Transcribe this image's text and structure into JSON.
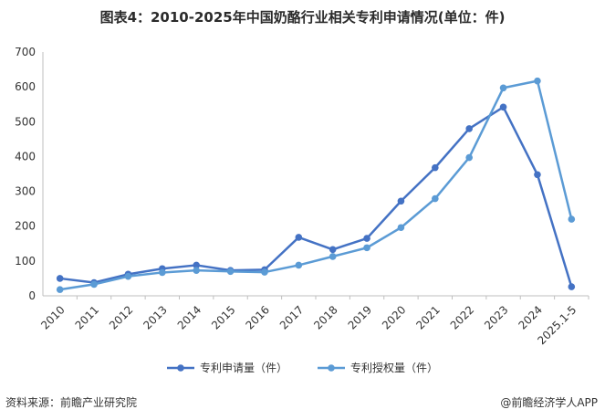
{
  "title": "图表4：2010-2025年中国奶酪行业相关专利申请情况(单位：件)",
  "source": "资料来源：前瞻产业研究院",
  "credit": "@前瞻经济学人APP",
  "chart_data": {
    "type": "line",
    "categories": [
      "2010",
      "2011",
      "2012",
      "2013",
      "2014",
      "2015",
      "2016",
      "2017",
      "2018",
      "2019",
      "2020",
      "2021",
      "2022",
      "2023",
      "2024",
      "2025.1-5"
    ],
    "series": [
      {
        "name": "专利申请量（件）",
        "color": "#4472c4",
        "values": [
          50,
          38,
          62,
          78,
          88,
          73,
          75,
          168,
          133,
          165,
          272,
          368,
          480,
          542,
          348,
          26
        ]
      },
      {
        "name": "专利授权量（件）",
        "color": "#5b9bd5",
        "values": [
          18,
          33,
          56,
          67,
          73,
          70,
          68,
          88,
          113,
          138,
          196,
          279,
          397,
          597,
          617,
          220
        ]
      }
    ],
    "ylim": [
      0,
      700
    ],
    "yticks": [
      0,
      100,
      200,
      300,
      400,
      500,
      600,
      700
    ],
    "grid": false,
    "legend": "bottom"
  }
}
